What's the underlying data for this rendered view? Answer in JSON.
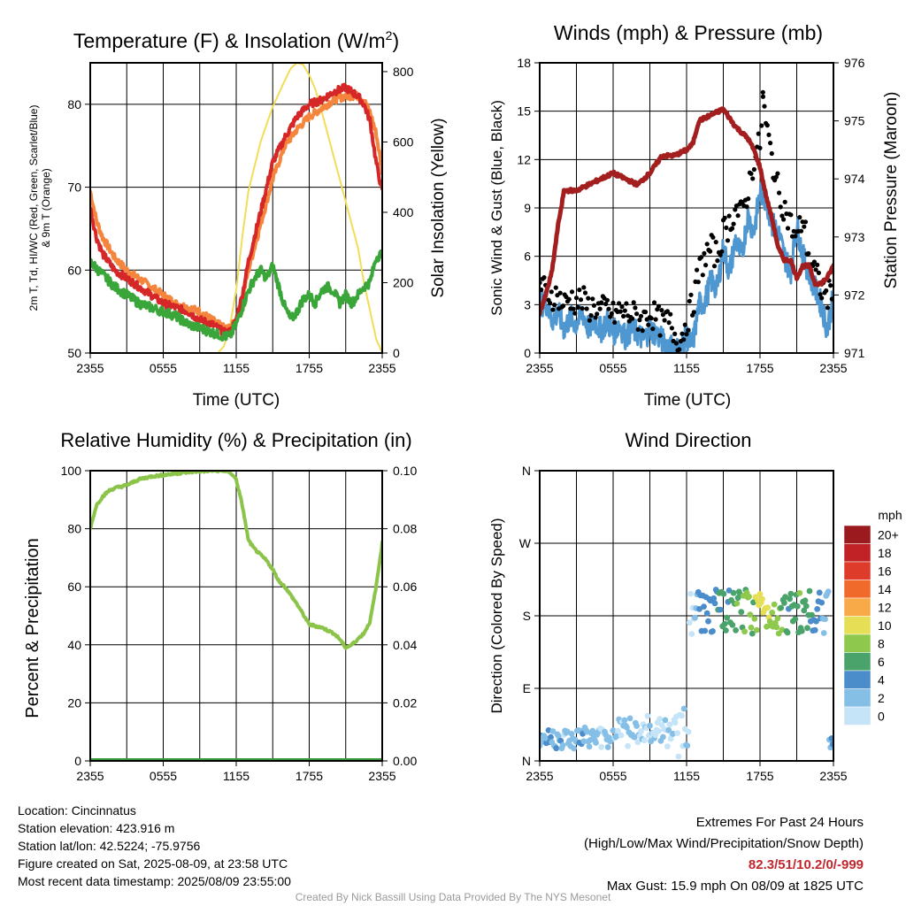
{
  "panels": {
    "temperature": {
      "title_main": "Temperature (F) & Insolation (W/m",
      "title_sup": "2",
      "title_end": ")",
      "ylabel_left_line1": "2m T, Td, HI/WC (Red, Green, Scarlet/Blue)",
      "ylabel_left_line2": "& 9m T (Orange)",
      "ylabel_right": "Solar Insolation (Yellow)",
      "xlabel": "Time (UTC)"
    },
    "winds": {
      "title": "Winds (mph) & Pressure (mb)",
      "ylabel_left": "Sonic Wind & Gust (Blue, Black)",
      "ylabel_right": "Station Pressure (Maroon)",
      "xlabel": "Time (UTC)"
    },
    "humidity": {
      "title": "Relative Humidity (%) & Precipitation (in)",
      "ylabel_left": "Percent & Precipitation"
    },
    "direction": {
      "title": "Wind Direction",
      "ylabel_left": "Direction (Colored By Speed)",
      "legend_title": "mph"
    }
  },
  "footer": {
    "location": "Location: Cincinnatus",
    "elevation": "Station elevation: 423.916 m",
    "latlon": "Station lat/lon: 42.5224; -75.9756",
    "created": "Figure created on Sat, 2025-08-09, at 23:58 UTC",
    "recent": "Most recent data timestamp: 2025/08/09 23:55:00",
    "extremes_title": "Extremes For Past 24 Hours",
    "extremes_subtitle": "(High/Low/Max Wind/Precipitation/Snow Depth)",
    "extremes_values": "82.3/51/10.2/0/-999",
    "max_gust": "Max Gust: 15.9 mph On 08/09 at 1825 UTC",
    "credit": "Created By Nick Bassill Using Data Provided By The NYS Mesonet"
  },
  "colors": {
    "temp_red": "#d62728",
    "temp_9m_orange": "#f5843c",
    "dewpoint_green": "#3aa63a",
    "insolation_yellow": "#f2dd57",
    "wind_blue": "#4e97d1",
    "gust_black": "#000000",
    "pressure_maroon": "#a31f1f",
    "rh_green": "#8cc44a",
    "precip_green": "#3a9a3a"
  },
  "chart_data": [
    {
      "type": "line",
      "panel": "temperature",
      "x_ticks": [
        "2355",
        "0555",
        "1155",
        "1755",
        "2355"
      ],
      "x_hours": [
        0,
        6,
        12,
        18,
        24
      ],
      "ylim_left": [
        50,
        85
      ],
      "yticks_left": [
        50,
        60,
        70,
        80
      ],
      "ylim_right": [
        0,
        825
      ],
      "yticks_right": [
        0,
        200,
        400,
        600,
        800
      ],
      "grid": true,
      "series": [
        {
          "name": "2m T",
          "color": "#d62728",
          "x": [
            0,
            0.5,
            1,
            2,
            3,
            4,
            5,
            6,
            7,
            8,
            9,
            10,
            11,
            11.5,
            12,
            12.5,
            13,
            14,
            15,
            16,
            17,
            18,
            19,
            20,
            21,
            22,
            22.5,
            23,
            23.5,
            24
          ],
          "y": [
            67.5,
            64,
            62,
            60,
            59,
            58,
            57,
            56,
            55.5,
            55,
            54,
            53.5,
            52.5,
            52.5,
            54,
            57,
            61,
            67,
            73,
            76,
            78.5,
            80,
            80.5,
            81.5,
            82,
            81,
            80,
            78,
            73,
            69.5
          ]
        },
        {
          "name": "9m T",
          "color": "#f5843c",
          "x": [
            0,
            0.5,
            1,
            2,
            3,
            4,
            5,
            6,
            7,
            8,
            9,
            10,
            11,
            11.5,
            12,
            12.5,
            13,
            14,
            15,
            16,
            17,
            18,
            19,
            20,
            21,
            22,
            22.5,
            23,
            23.5,
            24
          ],
          "y": [
            69.5,
            66,
            64,
            61.5,
            60,
            59,
            58,
            57,
            56,
            55.5,
            55,
            54,
            53,
            53,
            54,
            56.5,
            60,
            65.5,
            71,
            75,
            77,
            78.5,
            79.5,
            80.5,
            81,
            81,
            80.5,
            79,
            76.5,
            72
          ]
        },
        {
          "name": "Td",
          "color": "#3aa63a",
          "x": [
            0,
            1,
            2,
            3,
            4,
            5,
            6,
            7,
            8,
            9,
            10,
            11,
            11.5,
            12,
            12.5,
            13,
            13.5,
            14,
            14.5,
            15,
            15.5,
            16,
            16.5,
            17,
            17.5,
            18,
            18.5,
            19,
            19.5,
            20,
            20.5,
            21,
            21.5,
            22,
            22.5,
            23,
            23.5,
            24
          ],
          "y": [
            61,
            59.5,
            58,
            57,
            56,
            55.5,
            55,
            54.5,
            53.5,
            53,
            52.5,
            52,
            52,
            53.5,
            55.5,
            57.5,
            59,
            60,
            59,
            60.5,
            58,
            55.5,
            54,
            55,
            56.5,
            57,
            56,
            57.5,
            58,
            57.5,
            56,
            57,
            56,
            57,
            58,
            58.5,
            61.5,
            62
          ]
        },
        {
          "name": "Insolation",
          "color": "#f2dd57",
          "axis": "right",
          "x": [
            0,
            10.5,
            11,
            11.5,
            12,
            12.5,
            13,
            14,
            15,
            16,
            16.5,
            17,
            17.5,
            18,
            18.5,
            19,
            20,
            21,
            22,
            22.5,
            23,
            23.5,
            24
          ],
          "y": [
            0,
            0,
            20,
            80,
            180,
            330,
            460,
            600,
            700,
            775,
            810,
            825,
            820,
            790,
            750,
            690,
            560,
            430,
            300,
            200,
            120,
            40,
            0
          ]
        }
      ]
    },
    {
      "type": "line",
      "panel": "winds",
      "x_ticks": [
        "2355",
        "0555",
        "1155",
        "1755",
        "2355"
      ],
      "x_hours": [
        0,
        6,
        12,
        18,
        24
      ],
      "ylim_left": [
        0,
        18
      ],
      "yticks_left": [
        0,
        3,
        6,
        9,
        12,
        15,
        18
      ],
      "ylim_right": [
        971,
        976
      ],
      "yticks_right": [
        971,
        972,
        973,
        974,
        975,
        976
      ],
      "grid": true,
      "series": [
        {
          "name": "Sonic Wind",
          "color": "#4e97d1",
          "x": [
            0,
            0.5,
            1,
            1.5,
            2,
            2.5,
            3,
            3.5,
            4,
            4.5,
            5,
            5.5,
            6,
            6.5,
            7,
            7.5,
            8,
            8.5,
            9,
            9.5,
            10,
            10.5,
            11,
            11.5,
            12,
            12.5,
            13,
            13.5,
            14,
            14.5,
            15,
            15.5,
            16,
            16.5,
            17,
            17.5,
            18,
            18.5,
            19,
            19.5,
            20,
            20.5,
            21,
            21.5,
            22,
            22.5,
            23,
            23.5,
            24
          ],
          "y": [
            3,
            3.2,
            2,
            2.5,
            1.5,
            2.2,
            1.8,
            2.5,
            1.5,
            2,
            1.4,
            2,
            1.2,
            1.8,
            1,
            1.5,
            1.2,
            0.8,
            1.5,
            1.2,
            0.8,
            0.5,
            0.3,
            0.2,
            1,
            0.5,
            3,
            3.2,
            4.5,
            4,
            6.5,
            5,
            7,
            6,
            8.5,
            7.5,
            10,
            9.5,
            8,
            7.5,
            6,
            5,
            8,
            6,
            5,
            4,
            3,
            1.5,
            3.5
          ]
        },
        {
          "name": "Gust",
          "color": "#000000",
          "markers": true,
          "x": [
            0,
            0.5,
            1,
            1.5,
            2,
            2.5,
            3,
            3.5,
            4,
            4.5,
            5,
            5.5,
            6,
            6.5,
            7,
            7.5,
            8,
            8.5,
            9,
            9.5,
            10,
            10.5,
            11,
            11.5,
            12,
            12.5,
            13,
            13.5,
            14,
            14.5,
            15,
            15.5,
            16,
            16.5,
            17,
            17.5,
            18,
            18.25,
            18.5,
            19,
            19.5,
            20,
            20.5,
            21,
            21.5,
            22,
            22.5,
            23,
            23.5,
            24
          ],
          "y": [
            4.3,
            3.8,
            3.6,
            3.5,
            3,
            3.4,
            3.2,
            3.3,
            2.8,
            2.9,
            2.6,
            2.8,
            2.3,
            2.6,
            2.5,
            2.4,
            2.2,
            2.1,
            2.5,
            2.2,
            1.8,
            2,
            1.2,
            0.8,
            2,
            3,
            5,
            6,
            6.5,
            6,
            7.5,
            8,
            9,
            8.5,
            10,
            12,
            13,
            15.9,
            14,
            12,
            10,
            9,
            8,
            7,
            8.5,
            6,
            5,
            4,
            3.5,
            4
          ]
        },
        {
          "name": "Station Pressure",
          "color": "#a31f1f",
          "axis": "right",
          "x": [
            0,
            0.5,
            1,
            1.5,
            2,
            3,
            4,
            5,
            6,
            7,
            8,
            9,
            10,
            11,
            12,
            12.5,
            13,
            14,
            15,
            16,
            17,
            17.5,
            18,
            18.5,
            19,
            19.5,
            20,
            20.5,
            21,
            21.5,
            22,
            22.5,
            23,
            23.5,
            24
          ],
          "y": [
            971.7,
            972,
            972.4,
            973.2,
            973.8,
            973.8,
            973.9,
            974.0,
            974.1,
            974.0,
            973.9,
            974.1,
            974.4,
            974.4,
            974.5,
            974.6,
            975.0,
            975.1,
            975.2,
            974.9,
            974.7,
            974.5,
            974.2,
            973.7,
            973.3,
            972.8,
            972.6,
            972.6,
            972.3,
            972.5,
            972.5,
            972.2,
            972.2,
            972.3,
            972.5
          ]
        }
      ]
    },
    {
      "type": "line",
      "panel": "humidity",
      "x_ticks": [
        "2355",
        "0555",
        "1155",
        "1755",
        "2355"
      ],
      "x_hours": [
        0,
        6,
        12,
        18,
        24
      ],
      "ylim_left": [
        0,
        100
      ],
      "yticks_left": [
        0,
        20,
        40,
        60,
        80,
        100
      ],
      "ylim_right": [
        0,
        0.1
      ],
      "yticks_right": [
        "0.00",
        "0.02",
        "0.04",
        "0.06",
        "0.08",
        "0.10"
      ],
      "grid": true,
      "series": [
        {
          "name": "Relative Humidity",
          "color": "#8cc44a",
          "x": [
            0,
            0.5,
            1,
            1.5,
            2,
            3,
            4,
            5,
            6,
            7,
            8,
            9,
            10,
            11,
            11.5,
            12,
            12.5,
            13,
            13.5,
            14,
            14.5,
            15,
            15.5,
            16,
            17,
            18,
            19,
            19.5,
            20,
            20.5,
            21,
            21.5,
            22,
            22.5,
            23,
            23.5,
            24
          ],
          "y": [
            80,
            88,
            91,
            93,
            94,
            95,
            97,
            98,
            98.5,
            99,
            99.5,
            99.8,
            100,
            100,
            99.5,
            97,
            88,
            76,
            73,
            71,
            69,
            66,
            62,
            60,
            54,
            47,
            46,
            45,
            44,
            42,
            39,
            40,
            42,
            44,
            48,
            60,
            75
          ]
        },
        {
          "name": "Precipitation",
          "color": "#3a9a3a",
          "axis": "right",
          "x": [
            0,
            24
          ],
          "y": [
            0,
            0
          ]
        }
      ]
    },
    {
      "type": "scatter",
      "panel": "direction",
      "x_ticks": [
        "2355",
        "0555",
        "1155",
        "1755",
        "2355"
      ],
      "x_hours": [
        0,
        6,
        12,
        18,
        24
      ],
      "ylim": [
        0,
        360
      ],
      "yticks": [
        0,
        90,
        180,
        270,
        360
      ],
      "ytick_labels": [
        "N",
        "E",
        "S",
        "W",
        "N"
      ],
      "grid": true,
      "color_scale": [
        {
          "label": "0",
          "color": "#c6e4f7"
        },
        {
          "label": "2",
          "color": "#85bfe6"
        },
        {
          "label": "4",
          "color": "#4b8ccb"
        },
        {
          "label": "6",
          "color": "#4aa36a"
        },
        {
          "label": "8",
          "color": "#8ec94e"
        },
        {
          "label": "10",
          "color": "#e6df55"
        },
        {
          "label": "12",
          "color": "#f7aa47"
        },
        {
          "label": "14",
          "color": "#f06a2c"
        },
        {
          "label": "16",
          "color": "#df3b2a"
        },
        {
          "label": "18",
          "color": "#c02226"
        },
        {
          "label": "20+",
          "color": "#9b1a1e"
        }
      ]
    }
  ]
}
